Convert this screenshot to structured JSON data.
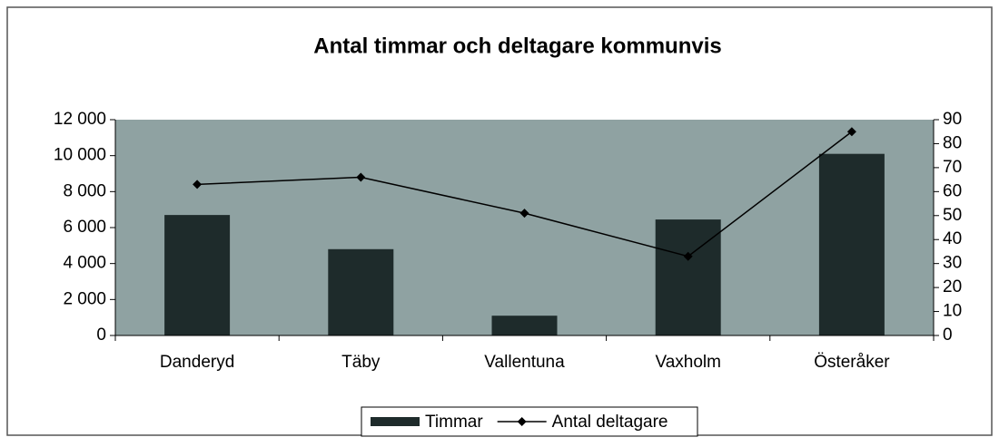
{
  "chart_data": {
    "type": "bar",
    "title": "Antal timmar och deltagare kommunvis",
    "categories": [
      "Danderyd",
      "Täby",
      "Vallentuna",
      "Vaxholm",
      "Österåker"
    ],
    "series": [
      {
        "name": "Timmar",
        "type": "bar",
        "color": "#1e2b2b",
        "values": [
          6700,
          4800,
          1100,
          6450,
          10100
        ]
      },
      {
        "name": "Antal deltagare",
        "type": "line",
        "axis": "y2",
        "color": "#000000",
        "values": [
          63,
          66,
          51,
          33,
          85
        ]
      }
    ],
    "ylim": [
      0,
      12000
    ],
    "yticks": [
      0,
      {
        "value": 2000,
        "label": "2 000"
      },
      {
        "value": 4000,
        "label": "4 000"
      },
      {
        "value": 6000,
        "label": "6 000"
      },
      {
        "value": 8000,
        "label": "8 000"
      },
      {
        "value": 10000,
        "label": "10 000"
      },
      {
        "value": 12000,
        "label": "12 000"
      }
    ],
    "y2lim": [
      0,
      90
    ],
    "y2ticks": [
      0,
      10,
      20,
      30,
      40,
      50,
      60,
      70,
      80,
      90
    ],
    "plot_background": "#8fa2a2",
    "legend": "bottom"
  }
}
